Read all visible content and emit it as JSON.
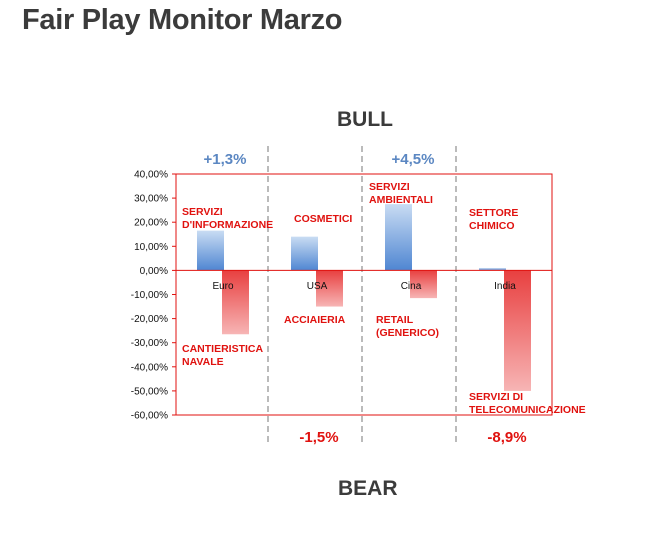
{
  "title": "Fair Play Monitor Marzo",
  "labels": {
    "bull": "BULL",
    "bear": "BEAR"
  },
  "colors": {
    "positive": "#5b8fd6",
    "negative": "#e83a3a",
    "frame": "#e0120f"
  },
  "chart_data": {
    "type": "bar",
    "categories": [
      "Euro",
      "USA",
      "Cina",
      "India"
    ],
    "series": [
      {
        "values": [
          16.5,
          14,
          27.5,
          1
        ]
      },
      {
        "values": [
          -26.5,
          -15,
          -11.5,
          -50
        ]
      }
    ],
    "bar_labels": [
      [
        "SERVIZI\nD'INFORMAZIONE",
        "COSMETICI",
        "SERVIZI\nAMBIENTALI",
        "SETTORE\nCHIMICO"
      ],
      [
        "CANTIERISTICA\nNAVALE",
        "ACCIAIERIA",
        "RETAIL\n(GENERICO)",
        "SERVIZI DI\nTELECOMUNICAZIONE"
      ]
    ],
    "yticks": [
      "40,00%",
      "30,00%",
      "20,00%",
      "10,00%",
      "0,00%",
      "-10,00%",
      "-20,00%",
      "-30,00%",
      "-40,00%",
      "-50,00%",
      "-60,00%"
    ],
    "ylim": [
      -60,
      40
    ],
    "top_annotations": [
      "+1,3%",
      "",
      "+4,5%",
      ""
    ],
    "bottom_annotations": [
      "",
      "-1,5%",
      "",
      "-8,9%"
    ]
  }
}
